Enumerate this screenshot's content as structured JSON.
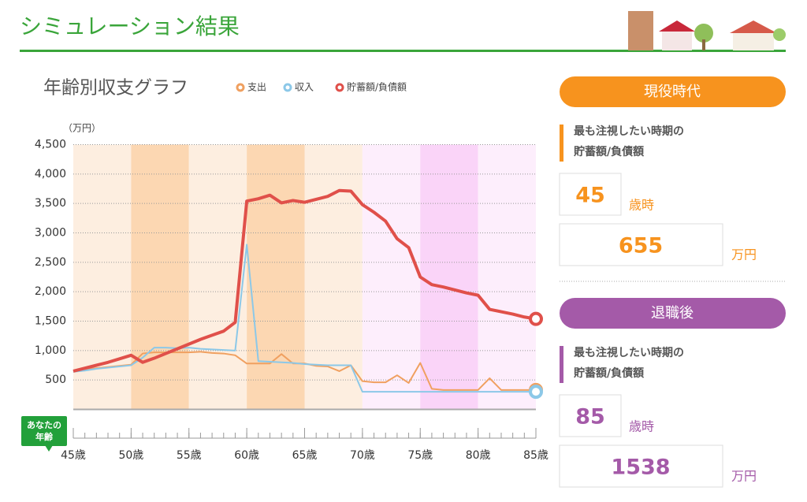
{
  "header": {
    "title": "シミュレーション結果"
  },
  "chart_data": {
    "type": "line",
    "title": "年齢別収支グラフ",
    "y_unit": "（万円）",
    "annotation": "あなたの年齢",
    "x": [
      45,
      46,
      47,
      48,
      49,
      50,
      51,
      52,
      53,
      54,
      55,
      56,
      57,
      58,
      59,
      60,
      61,
      62,
      63,
      64,
      65,
      66,
      67,
      68,
      69,
      70,
      71,
      72,
      73,
      74,
      75,
      76,
      77,
      78,
      79,
      80,
      81,
      82,
      83,
      84,
      85
    ],
    "xlim": [
      45,
      85
    ],
    "xticks": [
      {
        "value": 45,
        "label": "45歳"
      },
      {
        "value": 50,
        "label": "50歳"
      },
      {
        "value": 55,
        "label": "55歳"
      },
      {
        "value": 60,
        "label": "60歳"
      },
      {
        "value": 65,
        "label": "65歳"
      },
      {
        "value": 70,
        "label": "70歳"
      },
      {
        "value": 75,
        "label": "75歳"
      },
      {
        "value": 80,
        "label": "80歳"
      },
      {
        "value": 85,
        "label": "85歳"
      }
    ],
    "ylim": [
      0,
      4500
    ],
    "yticks": [
      500,
      {
        "value": 1000,
        "label": "1,000"
      },
      {
        "value": 1500,
        "label": "1,500"
      },
      {
        "value": 2000,
        "label": "2,000"
      },
      {
        "value": 2500,
        "label": "2,500"
      },
      {
        "value": 3000,
        "label": "3,000"
      },
      {
        "value": 3500,
        "label": "3,500"
      },
      {
        "value": 4000,
        "label": "4,000"
      },
      {
        "value": 4500,
        "label": "4,500"
      }
    ],
    "grid": true,
    "series": [
      {
        "name": "支出",
        "color": "#f0a060",
        "values": [
          650,
          680,
          700,
          720,
          740,
          760,
          950,
          970,
          970,
          970,
          970,
          980,
          960,
          950,
          920,
          780,
          780,
          780,
          940,
          780,
          780,
          740,
          730,
          650,
          750,
          480,
          460,
          460,
          580,
          450,
          790,
          350,
          330,
          330,
          330,
          330,
          530,
          330,
          330,
          330,
          330
        ]
      },
      {
        "name": "収入",
        "color": "#8cc8e8",
        "values": [
          640,
          660,
          690,
          710,
          730,
          750,
          880,
          1050,
          1050,
          1040,
          1050,
          1030,
          1020,
          1010,
          1000,
          2800,
          820,
          810,
          800,
          790,
          770,
          760,
          750,
          750,
          750,
          300,
          300,
          300,
          300,
          300,
          300,
          300,
          300,
          300,
          300,
          300,
          300,
          300,
          300,
          300,
          300
        ]
      },
      {
        "name": "貯蓄額/負債額",
        "color": "#e0504a",
        "values": [
          650,
          700,
          750,
          800,
          860,
          920,
          800,
          870,
          950,
          1030,
          1110,
          1190,
          1260,
          1330,
          1480,
          3540,
          3580,
          3640,
          3510,
          3550,
          3520,
          3570,
          3620,
          3720,
          3710,
          3480,
          3350,
          3200,
          2900,
          2750,
          2250,
          2120,
          2080,
          2030,
          1980,
          1940,
          1700,
          1660,
          1620,
          1570,
          1538
        ]
      }
    ]
  },
  "panels": [
    {
      "title": "現役時代",
      "label": [
        "最も注視したい時期の",
        "貯蓄額/負債額"
      ],
      "age": 45,
      "age_unit": "歳時",
      "amount": 655,
      "amount_unit": "万円",
      "color": "#f7931e"
    },
    {
      "title": "退職後",
      "label": [
        "最も注視したい時期の",
        "貯蓄額/負債額"
      ],
      "age": 85,
      "age_unit": "歳時",
      "amount": 1538,
      "amount_unit": "万円",
      "color": "#a45aa8"
    }
  ]
}
